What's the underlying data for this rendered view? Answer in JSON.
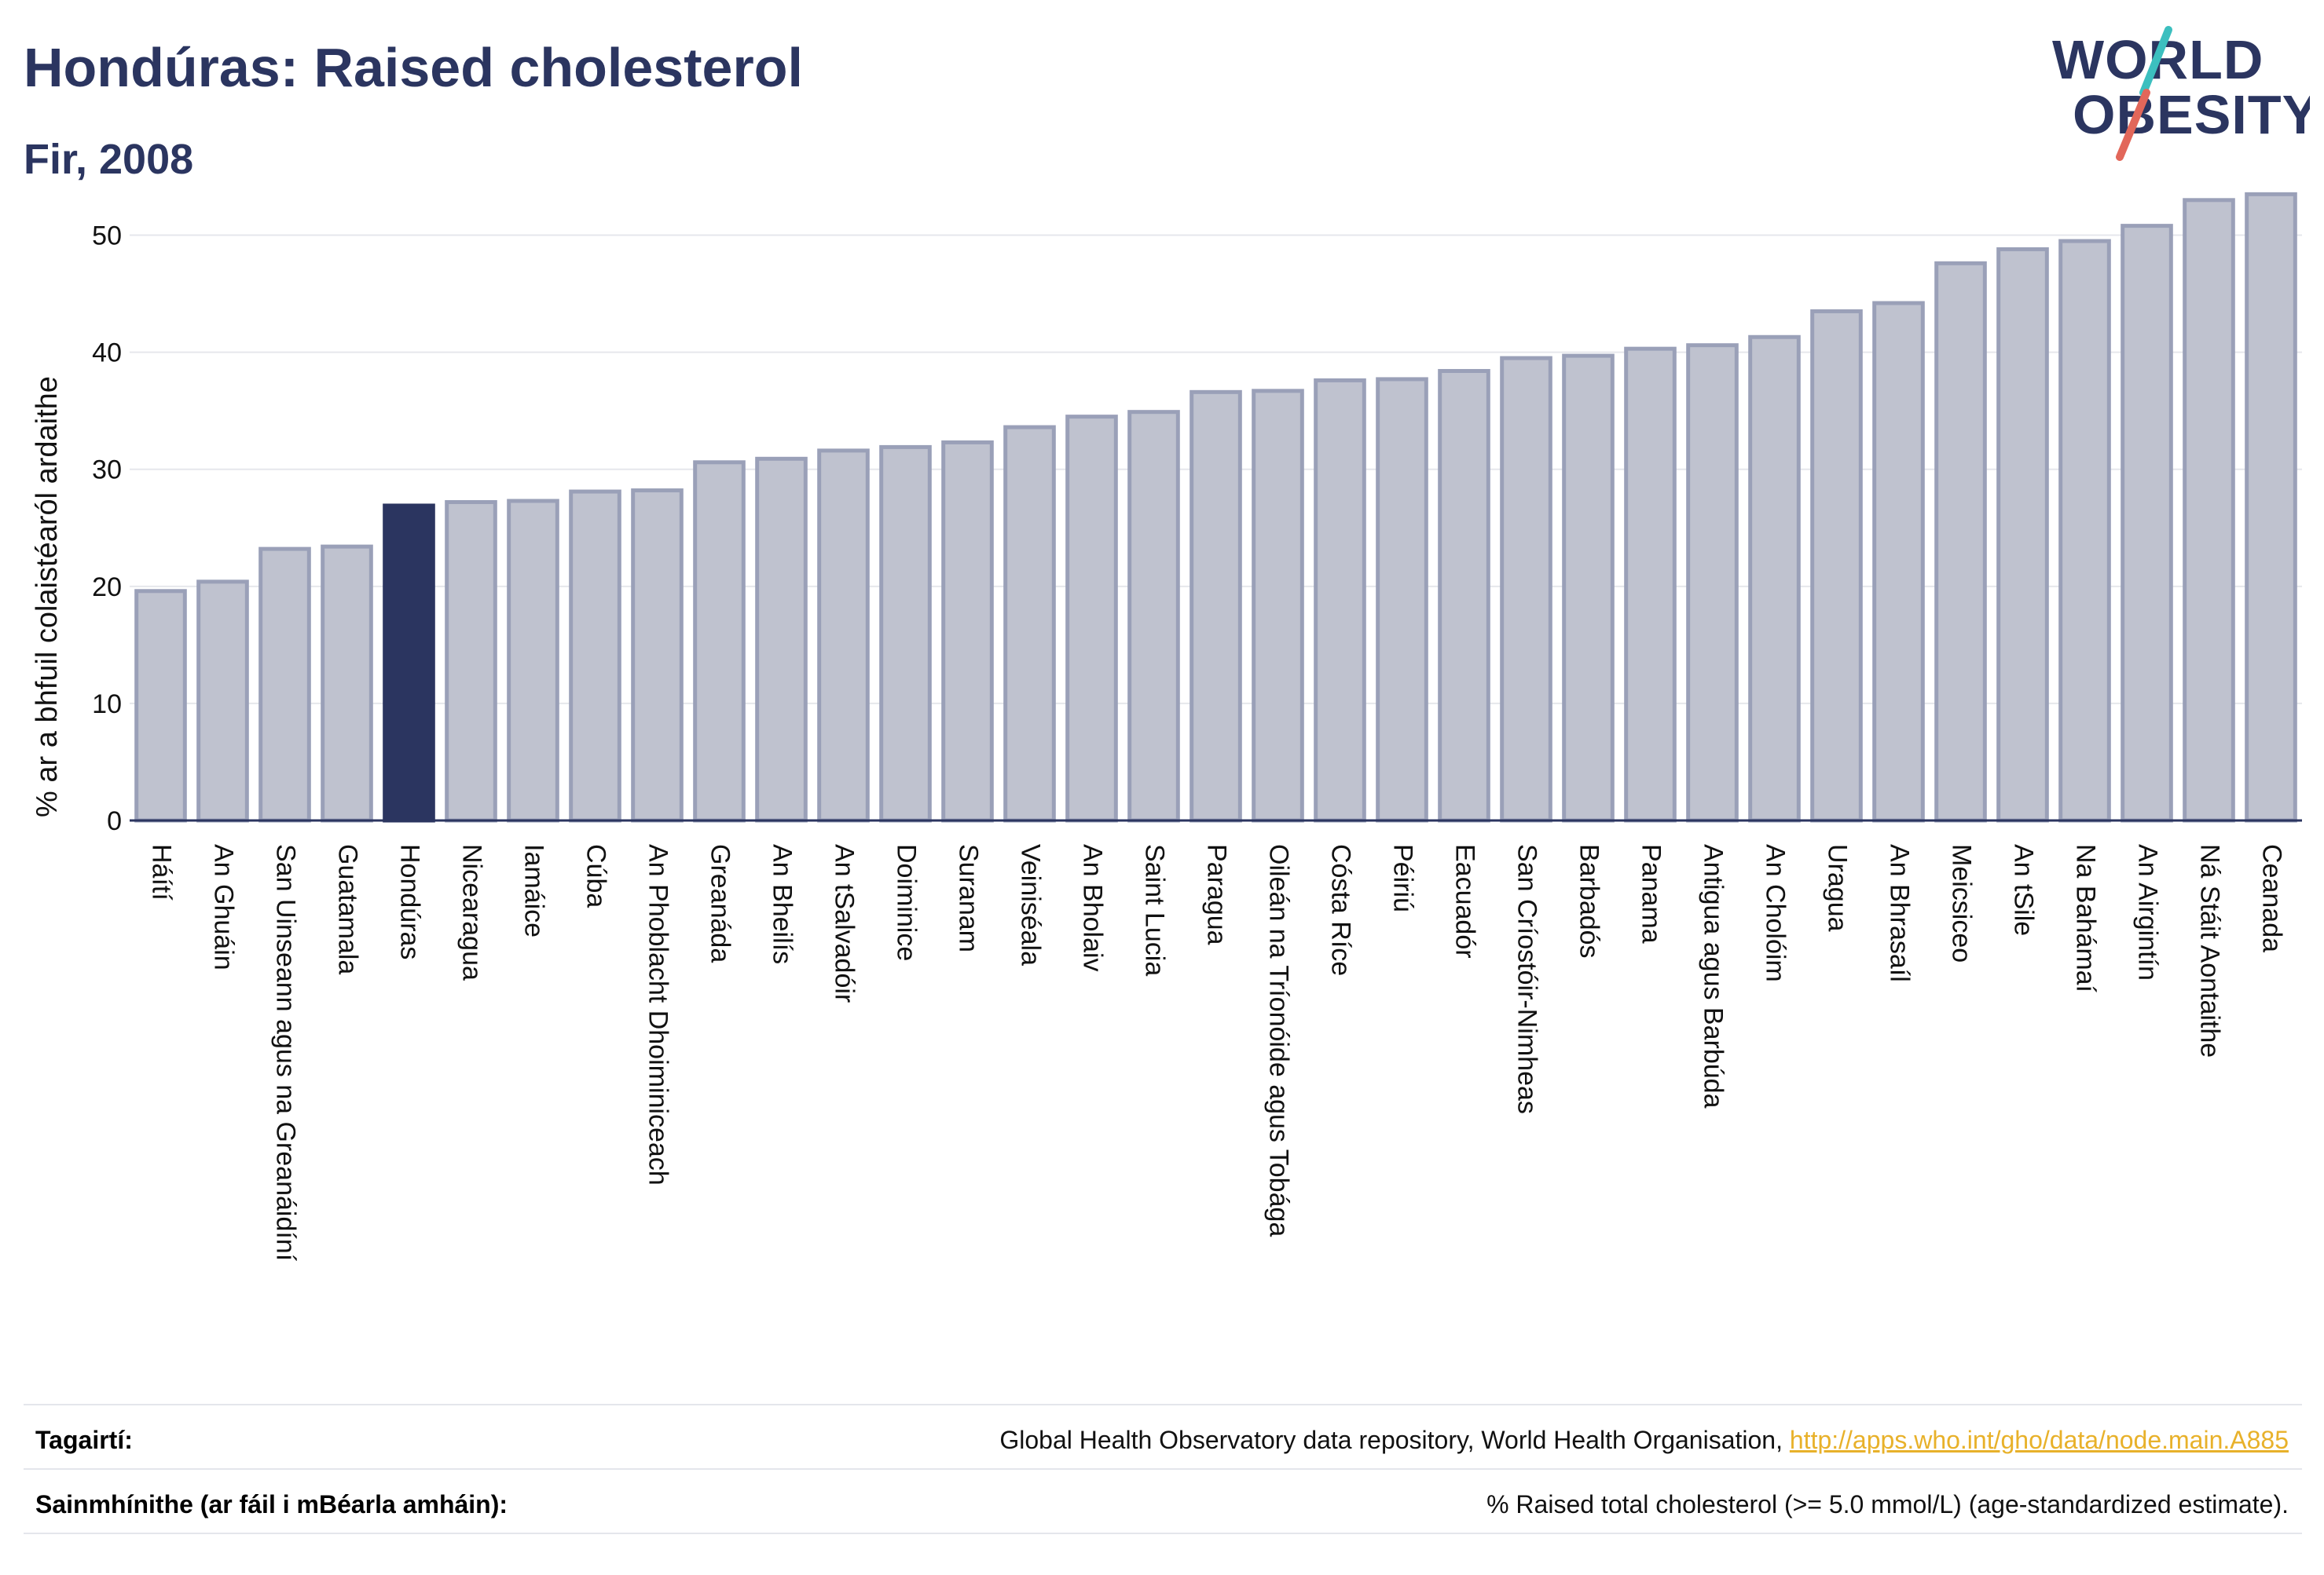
{
  "header": {
    "title": "Hondúras: Raised cholesterol",
    "subtitle": "Fir, 2008"
  },
  "logo": {
    "line1": "WORLD",
    "line2": "OBESITY",
    "accent_colors": [
      "#3cbfbf",
      "#e2675a"
    ]
  },
  "colors": {
    "highlight_bar": "#2b3560",
    "other_bar_fill": "#bfc2cf",
    "other_bar_stroke": "#9aa0b8",
    "axis_text": "#111111",
    "link": "#e8b12a"
  },
  "chart_data": {
    "type": "bar",
    "title": "Hondúras: Raised cholesterol",
    "subtitle": "Fir, 2008",
    "xlabel": "",
    "ylabel": "% ar a bhfuil colaistéaról ardaithe",
    "ylim": [
      0,
      55
    ],
    "yticks": [
      0,
      10,
      20,
      30,
      40,
      50
    ],
    "grid": true,
    "highlight": "Hondúras",
    "categories": [
      "Háítí",
      "An Ghuáin",
      "San Uinseann agus na Greanáidíní",
      "Guatamala",
      "Hondúras",
      "Nicearagua",
      "Iamáice",
      "Cúba",
      "An Phoblacht Dhoiminiceach",
      "Greanáda",
      "An Bheilís",
      "An tSalvadóir",
      "Doiminice",
      "Suranam",
      "Veiniséala",
      "An Bholaiv",
      "Saint Lucia",
      "Paragua",
      "Oileán na Tríonóide agus Tobága",
      "Cósta Ríce",
      "Péiriú",
      "Eacuadór",
      "San Críostóir-Nimheas",
      "Barbadós",
      "Panama",
      "Antigua agus Barbúda",
      "An Cholóim",
      "Uragua",
      "An Bhrasaíl",
      "Meicsiceo",
      "An tSile",
      "Na Bahámaí",
      "An Airgintín",
      "Ná Stáit Aontaithe",
      "Ceanada"
    ],
    "values": [
      19.6,
      20.4,
      23.2,
      23.4,
      26.9,
      27.2,
      27.3,
      28.1,
      28.2,
      30.6,
      30.9,
      31.6,
      31.9,
      32.3,
      33.6,
      34.5,
      34.9,
      36.6,
      36.7,
      37.6,
      37.7,
      38.4,
      39.5,
      39.7,
      40.3,
      40.6,
      41.3,
      43.5,
      44.2,
      47.6,
      48.8,
      49.5,
      50.8,
      53.0,
      53.5
    ]
  },
  "footer": {
    "references_label": "Tagairtí:",
    "references_text": "Global Health Observatory data repository, World Health Organisation, ",
    "references_link": "http://apps.who.int/gho/data/node.main.A885",
    "definitions_label": "Sainmhínithe (ar fáil i mBéarla amháin):",
    "definitions_text": "% Raised total cholesterol (>= 5.0 mmol/L) (age-standardized estimate)."
  }
}
